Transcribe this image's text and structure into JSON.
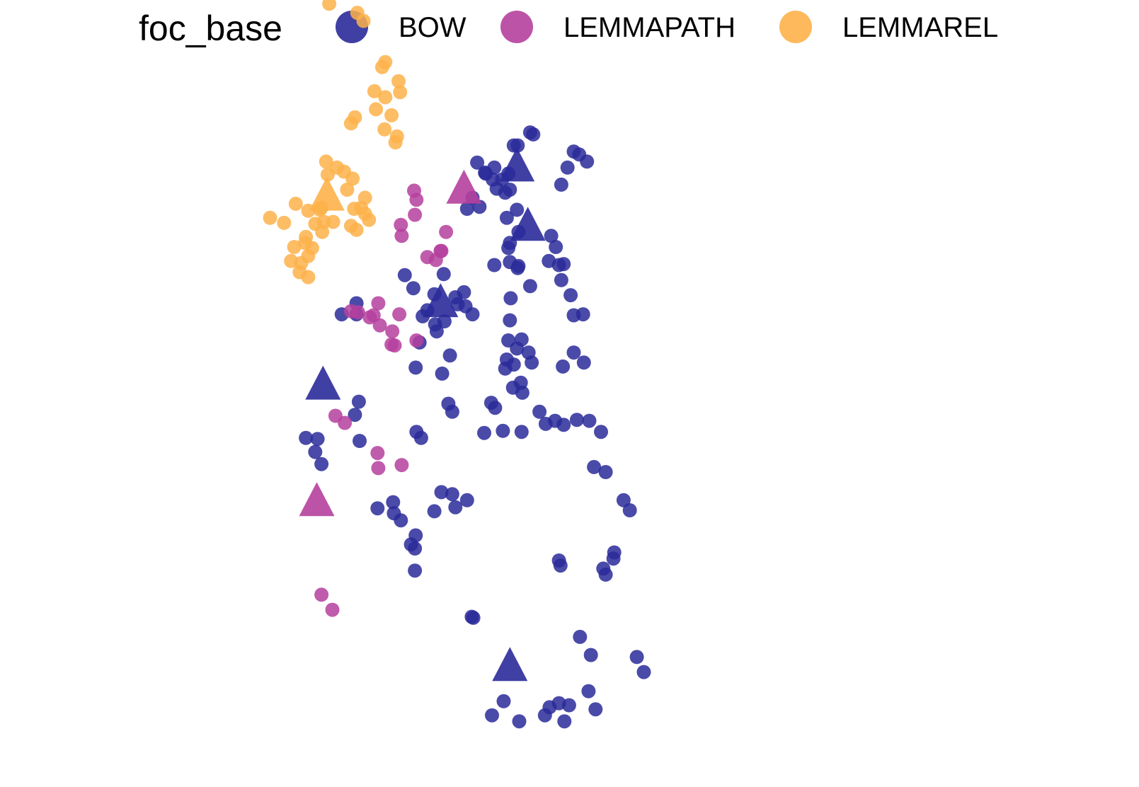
{
  "chart_data": {
    "type": "scatter",
    "title": "",
    "xlabel": "",
    "ylabel": "",
    "axes_visible": false,
    "grid": false,
    "legend": {
      "title": "foc_base",
      "placement": "top",
      "entries": [
        {
          "name": "BOW",
          "color": "#2a2a9a"
        },
        {
          "name": "LEMMAPATH",
          "color": "#b5409d"
        },
        {
          "name": "LEMMAREL",
          "color": "#fdb14a"
        }
      ]
    },
    "marker_legend": {
      "point": "circle",
      "centroid": "triangle"
    },
    "series": [
      {
        "name": "BOW",
        "color": "#2a2a9a",
        "points": [
          [
            54,
            9.6
          ],
          [
            55.5,
            11
          ],
          [
            57.5,
            9
          ],
          [
            60.8,
            9.6
          ],
          [
            61.4,
            10.4
          ],
          [
            62.6,
            10.8
          ],
          [
            63.3,
            9
          ],
          [
            63.9,
            10.6
          ],
          [
            66.4,
            12
          ],
          [
            67.3,
            10.2
          ],
          [
            44.2,
            27.5
          ],
          [
            43.6,
            26.6
          ],
          [
            44.1,
            26.2
          ],
          [
            41.3,
            30.8
          ],
          [
            39.3,
            30.2
          ],
          [
            41.4,
            29.7
          ],
          [
            42.3,
            29
          ],
          [
            50.8,
            31
          ],
          [
            48.9,
            31.6
          ],
          [
            49.3,
            30.3
          ],
          [
            37,
            36.9
          ],
          [
            31.3,
            35.8
          ],
          [
            32.1,
            34.6
          ],
          [
            36.4,
            39.5
          ],
          [
            31.6,
            37.1
          ],
          [
            30.1,
            37.2
          ],
          [
            36.9,
            40.8
          ],
          [
            44.2,
            44.2
          ],
          [
            48.6,
            45.4
          ],
          [
            46.6,
            51.5
          ],
          [
            51.5,
            49.5
          ],
          [
            45.7,
            49.9
          ],
          [
            45.1,
            49.3
          ],
          [
            46.7,
            48.5
          ],
          [
            47.9,
            48.8
          ],
          [
            46.9,
            47.8
          ],
          [
            49.3,
            51.2
          ],
          [
            50.4,
            51.7
          ],
          [
            47.8,
            53.5
          ],
          [
            43.9,
            52.1
          ],
          [
            42.8,
            53.4
          ],
          [
            36.6,
            50.6
          ],
          [
            36.6,
            49.5
          ],
          [
            34.7,
            49.5
          ],
          [
            44.7,
            46.7
          ],
          [
            49.6,
            50.5
          ],
          [
            50.6,
            50.3
          ],
          [
            47.6,
            43.6
          ],
          [
            48.9,
            39.8
          ],
          [
            48.4,
            40.6
          ],
          [
            44.3,
            37.8
          ],
          [
            44.9,
            37.2
          ],
          [
            47.5,
            31.8
          ],
          [
            46.6,
            29.9
          ],
          [
            44.1,
            24
          ],
          [
            53,
            37.7
          ],
          [
            55.4,
            37.9
          ],
          [
            57.8,
            37.8
          ],
          [
            59.1,
            44.7
          ],
          [
            58.7,
            45.7
          ],
          [
            60.1,
            39.8
          ],
          [
            60.9,
            38.6
          ],
          [
            62.1,
            38.9
          ],
          [
            63.2,
            38.5
          ],
          [
            57.9,
            41.7
          ],
          [
            57.7,
            42.7
          ],
          [
            56.7,
            42.2
          ],
          [
            55.7,
            44.1
          ],
          [
            57.2,
            46.1
          ],
          [
            57.8,
            47
          ],
          [
            56.1,
            46.9
          ],
          [
            55.9,
            45
          ],
          [
            56.3,
            48.9
          ],
          [
            56.4,
            51.1
          ],
          [
            58.9,
            52.3
          ],
          [
            57.3,
            54.1
          ],
          [
            56.1,
            56.1
          ],
          [
            56.3,
            54.7
          ],
          [
            57.4,
            54.3
          ],
          [
            56.3,
            56.6
          ],
          [
            57.4,
            57.7
          ],
          [
            55.9,
            59.1
          ],
          [
            57.2,
            59.9
          ],
          [
            56.3,
            61.9
          ],
          [
            55.7,
            61.6
          ],
          [
            54.6,
            62
          ],
          [
            55.3,
            62.9
          ],
          [
            56.1,
            63.5
          ],
          [
            54.1,
            62.9
          ],
          [
            53.2,
            63.5
          ],
          [
            54.3,
            64.1
          ],
          [
            52.4,
            60.2
          ],
          [
            50.8,
            60
          ],
          [
            51.5,
            61.1
          ],
          [
            52.1,
            64.6
          ],
          [
            53.1,
            63.6
          ],
          [
            56.8,
            66.3
          ],
          [
            57.3,
            66.3
          ],
          [
            59.3,
            67.4
          ],
          [
            58.9,
            67.6
          ],
          [
            62.9,
            62.4
          ],
          [
            64.5,
            65.7
          ],
          [
            65.2,
            65.4
          ],
          [
            66.2,
            64.7
          ],
          [
            63.7,
            64.1
          ],
          [
            61.6,
            57.3
          ],
          [
            62.2,
            56.2
          ],
          [
            62.6,
            54.4
          ],
          [
            61.3,
            54.8
          ],
          [
            63.2,
            54.5
          ],
          [
            62.9,
            52.9
          ],
          [
            64.1,
            51.4
          ],
          [
            65.7,
            49.5
          ],
          [
            64.5,
            49.4
          ],
          [
            64.5,
            45.7
          ],
          [
            65.8,
            44.7
          ],
          [
            63.1,
            44.3
          ],
          [
            64.9,
            39
          ],
          [
            66.5,
            38.9
          ],
          [
            68,
            37.8
          ],
          [
            67.1,
            34.3
          ],
          [
            68.6,
            33.8
          ],
          [
            56.8,
            44.5
          ],
          [
            68.3,
            24.2
          ],
          [
            68.6,
            23.6
          ],
          [
            65.3,
            17.4
          ],
          [
            66.7,
            15.6
          ],
          [
            72.6,
            15.4
          ],
          [
            73.5,
            13.9
          ],
          [
            51.6,
            19.3
          ],
          [
            51.4,
            19.4
          ],
          [
            54.3,
            54.4
          ],
          [
            53.9,
            40.7
          ],
          [
            54.4,
            40.2
          ],
          [
            62.6,
            25
          ],
          [
            62.8,
            24.5
          ],
          [
            69.7,
            25.8
          ],
          [
            69.6,
            25.2
          ],
          [
            70.9,
            31
          ],
          [
            71.7,
            30
          ]
        ]
      },
      {
        "name": "LEMMAPATH",
        "color": "#b5409d",
        "points": [
          [
            44.3,
            60.9
          ],
          [
            44,
            61.8
          ],
          [
            44.1,
            59.4
          ],
          [
            45.7,
            55.2
          ],
          [
            42.3,
            58.4
          ],
          [
            42.4,
            57.3
          ],
          [
            46.8,
            54.9
          ],
          [
            47.4,
            55.8
          ],
          [
            48.1,
            57.7
          ],
          [
            47.5,
            55.8
          ],
          [
            38.8,
            49.4
          ],
          [
            39.4,
            50.6
          ],
          [
            39.6,
            48.4
          ],
          [
            41.2,
            47.8
          ],
          [
            42.1,
            49.5
          ],
          [
            41.5,
            46.4
          ],
          [
            41.1,
            46.5
          ],
          [
            44.3,
            46.9
          ],
          [
            33.9,
            39.4
          ],
          [
            35.1,
            38.7
          ],
          [
            42.4,
            34.5
          ],
          [
            39.3,
            35.7
          ],
          [
            39.4,
            34.2
          ],
          [
            35.9,
            49.8
          ],
          [
            36.8,
            49.7
          ],
          [
            38.3,
            49.2
          ],
          [
            32.1,
            21.6
          ],
          [
            33.5,
            20.1
          ]
        ]
      },
      {
        "name": "LEMMAREL",
        "color": "#fdb14a",
        "points": [
          [
            33.4,
            81.8
          ],
          [
            33.1,
            80.4
          ],
          [
            36.7,
            79.5
          ],
          [
            37.5,
            78.7
          ],
          [
            39.9,
            74.1
          ],
          [
            40.3,
            74.6
          ],
          [
            38.9,
            71.7
          ],
          [
            39.1,
            69.9
          ],
          [
            40.3,
            71.1
          ],
          [
            41.1,
            69.3
          ],
          [
            41.6,
            66.6
          ],
          [
            41.8,
            67.2
          ],
          [
            40.2,
            67.9
          ],
          [
            42.2,
            71.6
          ],
          [
            42,
            72.7
          ],
          [
            35.9,
            68.5
          ],
          [
            36.4,
            69.1
          ],
          [
            36.1,
            63
          ],
          [
            36.3,
            60
          ],
          [
            37.2,
            60.1
          ],
          [
            35.4,
            61.9
          ],
          [
            35.9,
            58.3
          ],
          [
            36.6,
            57.9
          ],
          [
            38.2,
            58.9
          ],
          [
            37.7,
            61.1
          ],
          [
            37.7,
            59.5
          ],
          [
            31.9,
            59.9
          ],
          [
            32.4,
            58.7
          ],
          [
            32.9,
            63.4
          ],
          [
            32.7,
            64.7
          ],
          [
            35,
            63.7
          ],
          [
            34.1,
            64.1
          ],
          [
            28.8,
            60.5
          ],
          [
            30.4,
            59.8
          ],
          [
            30,
            56.6
          ],
          [
            30.9,
            56.1
          ],
          [
            28.6,
            56.2
          ],
          [
            30.4,
            55.3
          ],
          [
            30.1,
            57.2
          ],
          [
            31.3,
            58.5
          ],
          [
            32.2,
            57.7
          ],
          [
            32.1,
            60.1
          ],
          [
            29.3,
            53.7
          ],
          [
            30.4,
            53.2
          ],
          [
            27.3,
            58.6
          ],
          [
            25.5,
            59.1
          ],
          [
            28.2,
            54.8
          ],
          [
            29.5,
            54.6
          ],
          [
            33.6,
            58.7
          ]
        ]
      }
    ],
    "centroids": [
      {
        "series": "BOW",
        "x": 57.2,
        "y": 64
      },
      {
        "series": "BOW",
        "x": 58.6,
        "y": 58.1
      },
      {
        "series": "BOW",
        "x": 47.4,
        "y": 50.5
      },
      {
        "series": "BOW",
        "x": 32.3,
        "y": 42.3
      },
      {
        "series": "BOW",
        "x": 56.3,
        "y": 14.3
      },
      {
        "series": "LEMMAPATH",
        "x": 50.4,
        "y": 61.8
      },
      {
        "series": "LEMMAPATH",
        "x": 31.5,
        "y": 30.7
      },
      {
        "series": "LEMMAREL",
        "x": 32.8,
        "y": 61.1
      }
    ]
  }
}
